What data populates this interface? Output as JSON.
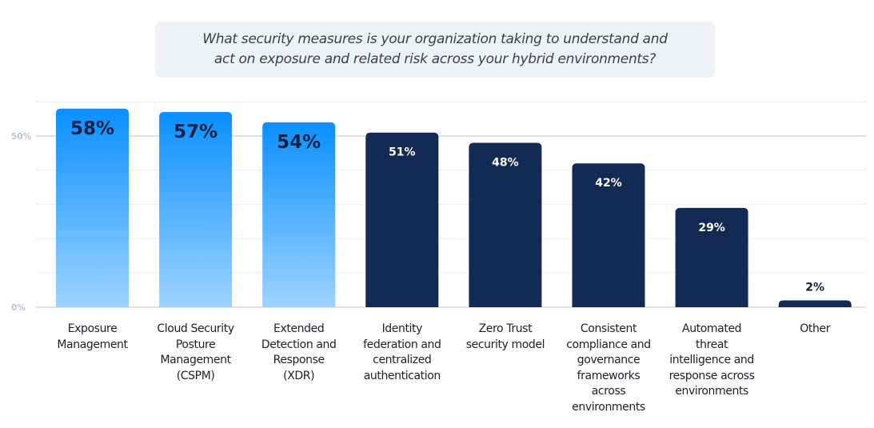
{
  "question": {
    "line1": "What security measures is your organization taking to understand and",
    "line2": "act on exposure and related risk across your hybrid environments?"
  },
  "colors": {
    "highlight_top": "#0a8fff",
    "highlight_bottom": "#9dd3ff",
    "dark_bar": "#132a55",
    "grid": "#e8ebf0",
    "major_grid": "#c5cfdc",
    "axis_label": "#b8c4d4",
    "label_dark": "#11213f",
    "label_light": "#ffffff"
  },
  "chart_data": {
    "type": "bar",
    "title": "What security measures is your organization taking to understand and act on exposure and related risk across your hybrid environments?",
    "xlabel": "",
    "ylabel": "",
    "ylim": [
      0,
      60
    ],
    "yticks": [
      0,
      50
    ],
    "ytick_labels": [
      "0%",
      "50%"
    ],
    "grid": true,
    "categories": [
      [
        "Exposure",
        "Management"
      ],
      [
        "Cloud Security",
        "Posture",
        "Management",
        "(CSPM)"
      ],
      [
        "Extended",
        "Detection and",
        "Response",
        "(XDR)"
      ],
      [
        "Identity",
        "federation and",
        "centralized",
        "authentication"
      ],
      [
        "Zero Trust",
        "security model"
      ],
      [
        "Consistent",
        "compliance and",
        "governance",
        "frameworks",
        "across",
        "environments"
      ],
      [
        "Automated",
        "threat",
        "intelligence and",
        "response across",
        "environments"
      ],
      [
        "Other"
      ]
    ],
    "values": [
      58,
      57,
      54,
      51,
      48,
      42,
      29,
      2
    ],
    "data_labels": [
      "58%",
      "57%",
      "54%",
      "51%",
      "48%",
      "42%",
      "29%",
      "2%"
    ],
    "highlighted": [
      true,
      true,
      true,
      false,
      false,
      false,
      false,
      false
    ]
  }
}
